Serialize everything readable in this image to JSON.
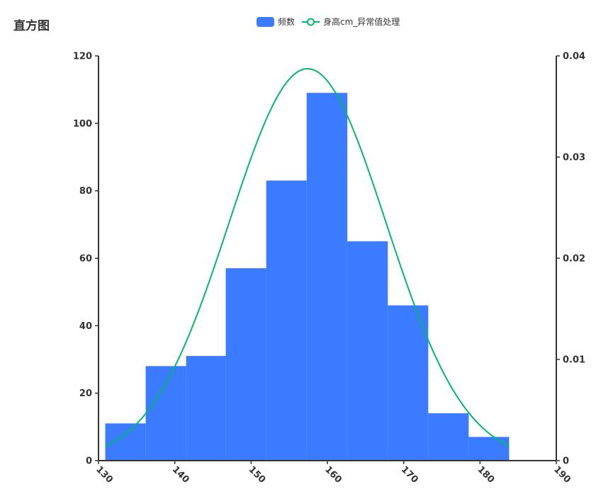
{
  "title": "直方图",
  "colors": {
    "bar": "#3a7bff",
    "line": "#00b96b",
    "axis": "#333333"
  },
  "legend": {
    "items": [
      {
        "label": "频数",
        "kind": "bar"
      },
      {
        "label": "身高cm_异常值处理",
        "kind": "line"
      }
    ]
  },
  "chart_data": {
    "type": "bar",
    "x_axis": {
      "min": 130,
      "max": 190,
      "ticks": [
        130,
        140,
        150,
        160,
        170,
        180,
        190
      ]
    },
    "y_axis_left": {
      "min": 0,
      "max": 120,
      "ticks": [
        0,
        20,
        40,
        60,
        80,
        100,
        120
      ]
    },
    "y_axis_right": {
      "min": 0,
      "max": 0.04,
      "ticks": [
        "0",
        "0.01",
        "0.02",
        "0.03",
        "0.04"
      ]
    },
    "bins": [
      {
        "x0": 130.9,
        "x1": 136.2,
        "count": 11
      },
      {
        "x0": 136.2,
        "x1": 141.5,
        "count": 28
      },
      {
        "x0": 141.5,
        "x1": 146.7,
        "count": 31
      },
      {
        "x0": 146.7,
        "x1": 152.0,
        "count": 57
      },
      {
        "x0": 152.0,
        "x1": 157.3,
        "count": 83
      },
      {
        "x0": 157.3,
        "x1": 162.6,
        "count": 109
      },
      {
        "x0": 162.6,
        "x1": 167.9,
        "count": 65
      },
      {
        "x0": 167.9,
        "x1": 173.2,
        "count": 46
      },
      {
        "x0": 173.2,
        "x1": 178.5,
        "count": 14
      },
      {
        "x0": 178.5,
        "x1": 183.8,
        "count": 7
      }
    ],
    "density_curve": {
      "mean": 157.4,
      "std": 10.3,
      "x_start": 130.9,
      "x_end": 183.8,
      "axis": "right"
    }
  }
}
